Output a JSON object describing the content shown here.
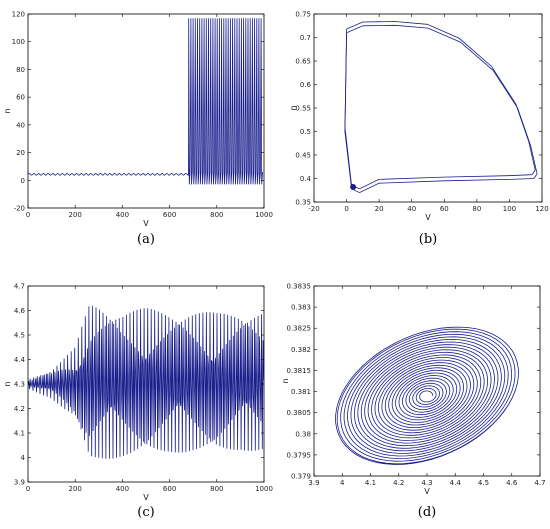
{
  "chart_data": [
    {
      "id": "a",
      "type": "line",
      "caption": "(a)",
      "xlabel": "V",
      "ylabel": "n",
      "xlim": [
        0,
        1000
      ],
      "ylim": [
        -20,
        120
      ],
      "xticks": [
        0,
        200,
        400,
        600,
        800,
        1000
      ],
      "yticks": [
        -20,
        0,
        20,
        40,
        60,
        80,
        100,
        120
      ],
      "color": "#1a1f8c",
      "series": [
        {
          "x": [
            0,
            680,
            681,
            685,
            700,
            720,
            740,
            760,
            780,
            800,
            820,
            840,
            860,
            880,
            900,
            920,
            940,
            960,
            980,
            1000
          ],
          "y": [
            4.3,
            4.3,
            117,
            -3,
            117,
            -3,
            117,
            -3,
            117,
            -3,
            117,
            -3,
            117,
            -3,
            117,
            -3,
            117,
            -3,
            117,
            5
          ]
        }
      ]
    },
    {
      "id": "b",
      "type": "line",
      "caption": "(b)",
      "xlabel": "V",
      "ylabel": "n",
      "xlim": [
        -20,
        120
      ],
      "ylim": [
        0.35,
        0.75
      ],
      "xticks": [
        -20,
        0,
        20,
        40,
        60,
        80,
        100,
        120
      ],
      "yticks": [
        0.35,
        0.4,
        0.45,
        0.5,
        0.55,
        0.6,
        0.65,
        0.7,
        0.75
      ],
      "color": "#1a1f8c",
      "series": [
        {
          "x": [
            3,
            -1,
            0,
            10,
            30,
            50,
            70,
            90,
            105,
            113,
            117,
            115,
            100,
            60,
            20,
            8,
            5,
            3
          ],
          "y": [
            0.38,
            0.5,
            0.71,
            0.725,
            0.726,
            0.72,
            0.69,
            0.63,
            0.55,
            0.47,
            0.41,
            0.4,
            0.398,
            0.395,
            0.39,
            0.37,
            0.375,
            0.38
          ]
        }
      ]
    },
    {
      "id": "c",
      "type": "line",
      "caption": "(c)",
      "xlabel": "V",
      "ylabel": "n",
      "xlim": [
        0,
        1000
      ],
      "ylim": [
        3.9,
        4.7
      ],
      "xticks": [
        0,
        200,
        400,
        600,
        800,
        1000
      ],
      "yticks": [
        3.9,
        4,
        4.1,
        4.2,
        4.3,
        4.4,
        4.5,
        4.6,
        4.7
      ],
      "color": "#1a1f8c",
      "series": [
        {
          "x": [
            0,
            100,
            200,
            260,
            300,
            400,
            500,
            600,
            700,
            800,
            900,
            1000
          ],
          "upper": [
            4.32,
            4.36,
            4.45,
            4.63,
            4.63,
            4.6,
            4.61,
            4.6,
            4.6,
            4.59,
            4.6,
            4.6
          ],
          "lower": [
            4.28,
            4.24,
            4.15,
            3.98,
            3.99,
            4.0,
            4.0,
            4.02,
            4.02,
            4.01,
            4.03,
            4.02
          ]
        }
      ]
    },
    {
      "id": "d",
      "type": "line",
      "caption": "(d)",
      "xlabel": "V",
      "ylabel": "n",
      "xlim": [
        3.9,
        4.7
      ],
      "ylim": [
        0.379,
        0.3835
      ],
      "xticks": [
        3.9,
        4,
        4.1,
        4.2,
        4.3,
        4.4,
        4.5,
        4.6,
        4.7
      ],
      "yticks": [
        0.379,
        0.3795,
        0.38,
        0.3805,
        0.381,
        0.3815,
        0.382,
        0.3825,
        0.383,
        0.3835
      ],
      "color": "#1a1f8c",
      "series": [
        {
          "center": [
            4.3,
            0.3809
          ],
          "rx_range": [
            0.02,
            0.32
          ],
          "ry_range": [
            0.0001,
            0.0016
          ]
        }
      ]
    }
  ]
}
